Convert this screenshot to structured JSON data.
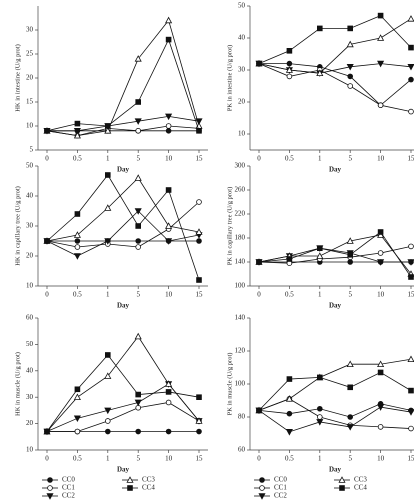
{
  "chart_data": [
    {
      "type": "line",
      "ylabel": "HK in intestine (U/g prot)",
      "xlabel": "Day",
      "categories": [
        "0",
        "0.5",
        "1",
        "5",
        "10",
        "15"
      ],
      "ylim": [
        5,
        35
      ],
      "yticks": [
        5,
        10,
        15,
        20,
        25,
        30
      ],
      "series": [
        {
          "name": "CC0",
          "color": "#111",
          "marker": "circle-filled",
          "values": [
            9,
            9,
            9,
            9,
            9,
            9
          ]
        },
        {
          "name": "CC1",
          "color": "#111",
          "marker": "circle-open",
          "values": [
            9,
            8,
            9.5,
            9,
            10,
            9.5
          ]
        },
        {
          "name": "CC2",
          "color": "#111",
          "marker": "triangle-down-filled",
          "values": [
            9,
            9,
            10,
            11,
            12,
            11
          ]
        },
        {
          "name": "CC3",
          "color": "#111",
          "marker": "triangle-up-open",
          "values": [
            9,
            8,
            9,
            24,
            32,
            10
          ]
        },
        {
          "name": "CC4",
          "color": "#111",
          "marker": "square-filled",
          "values": [
            9,
            10.5,
            10,
            15,
            28,
            9
          ]
        }
      ]
    },
    {
      "type": "line",
      "ylabel": "PK in intestine (U/g prot)",
      "xlabel": "Day",
      "categories": [
        "0",
        "0.5",
        "1",
        "5",
        "10",
        "15"
      ],
      "ylim": [
        5,
        50
      ],
      "yticks": [
        10,
        20,
        30,
        40,
        50
      ],
      "series": [
        {
          "name": "CC0",
          "color": "#111",
          "marker": "circle-filled",
          "values": [
            32,
            32,
            31,
            28,
            19,
            27
          ]
        },
        {
          "name": "CC1",
          "color": "#111",
          "marker": "circle-open",
          "values": [
            32,
            28,
            30,
            25,
            19,
            17
          ]
        },
        {
          "name": "CC2",
          "color": "#111",
          "marker": "triangle-down-filled",
          "values": [
            32,
            30,
            29,
            31,
            32,
            31
          ]
        },
        {
          "name": "CC3",
          "color": "#111",
          "marker": "triangle-up-open",
          "values": [
            32,
            30,
            29,
            38,
            40,
            46
          ]
        },
        {
          "name": "CC4",
          "color": "#111",
          "marker": "square-filled",
          "values": [
            32,
            36,
            43,
            43,
            47,
            37
          ]
        }
      ]
    },
    {
      "type": "line",
      "ylabel": "HK in capillary tree (U/g prot)",
      "xlabel": "Day",
      "categories": [
        "0",
        "0.5",
        "1",
        "5",
        "10",
        "15"
      ],
      "ylim": [
        10,
        50
      ],
      "yticks": [
        10,
        20,
        30,
        40,
        50
      ],
      "series": [
        {
          "name": "CC0",
          "color": "#111",
          "marker": "circle-filled",
          "values": [
            25,
            25,
            25,
            25,
            25,
            25
          ]
        },
        {
          "name": "CC1",
          "color": "#111",
          "marker": "circle-open",
          "values": [
            25,
            23,
            24,
            23,
            29,
            38
          ]
        },
        {
          "name": "CC2",
          "color": "#111",
          "marker": "triangle-down-filled",
          "values": [
            25,
            20,
            25,
            35,
            25,
            27
          ]
        },
        {
          "name": "CC3",
          "color": "#111",
          "marker": "triangle-up-open",
          "values": [
            25,
            27,
            36,
            46,
            30,
            28
          ]
        },
        {
          "name": "CC4",
          "color": "#111",
          "marker": "square-filled",
          "values": [
            25,
            34,
            47,
            30,
            42,
            12
          ]
        }
      ]
    },
    {
      "type": "line",
      "ylabel": "PK in capillary tree (U/g prot)",
      "xlabel": "Day",
      "categories": [
        "0",
        "0.5",
        "1",
        "5",
        "10",
        "15"
      ],
      "ylim": [
        100,
        300
      ],
      "yticks": [
        100,
        140,
        180,
        220,
        260,
        300
      ],
      "series": [
        {
          "name": "CC0",
          "color": "#111",
          "marker": "circle-filled",
          "values": [
            140,
            140,
            140,
            140,
            140,
            140
          ]
        },
        {
          "name": "CC1",
          "color": "#111",
          "marker": "circle-open",
          "values": [
            140,
            138,
            145,
            148,
            155,
            166
          ]
        },
        {
          "name": "CC2",
          "color": "#111",
          "marker": "triangle-down-filled",
          "values": [
            140,
            150,
            163,
            155,
            140,
            140
          ]
        },
        {
          "name": "CC3",
          "color": "#111",
          "marker": "triangle-up-open",
          "values": [
            140,
            150,
            150,
            175,
            185,
            120
          ]
        },
        {
          "name": "CC4",
          "color": "#111",
          "marker": "square-filled",
          "values": [
            140,
            145,
            163,
            152,
            190,
            115
          ]
        }
      ]
    },
    {
      "type": "line",
      "ylabel": "HK in muscle (U/g prot)",
      "xlabel": "Day",
      "categories": [
        "0",
        "0.5",
        "1",
        "5",
        "10",
        "15"
      ],
      "ylim": [
        10,
        60
      ],
      "yticks": [
        10,
        20,
        30,
        40,
        50,
        60
      ],
      "series": [
        {
          "name": "CC0",
          "color": "#111",
          "marker": "circle-filled",
          "values": [
            17,
            17,
            17,
            17,
            17,
            17
          ]
        },
        {
          "name": "CC1",
          "color": "#111",
          "marker": "circle-open",
          "values": [
            17,
            17,
            21,
            26,
            28,
            21
          ]
        },
        {
          "name": "CC2",
          "color": "#111",
          "marker": "triangle-down-filled",
          "values": [
            17,
            22,
            25,
            28,
            35,
            21
          ]
        },
        {
          "name": "CC3",
          "color": "#111",
          "marker": "triangle-up-open",
          "values": [
            17,
            30,
            38,
            53,
            35,
            21
          ]
        },
        {
          "name": "CC4",
          "color": "#111",
          "marker": "square-filled",
          "values": [
            17,
            33,
            46,
            31,
            32,
            30
          ]
        }
      ]
    },
    {
      "type": "line",
      "ylabel": "PK in muscle (U/g prot)",
      "xlabel": "Day",
      "categories": [
        "0",
        "0.5",
        "1",
        "5",
        "10",
        "15"
      ],
      "ylim": [
        60,
        140
      ],
      "yticks": [
        60,
        80,
        100,
        120,
        140
      ],
      "series": [
        {
          "name": "CC0",
          "color": "#111",
          "marker": "circle-filled",
          "values": [
            84,
            82,
            85,
            80,
            88,
            84
          ]
        },
        {
          "name": "CC1",
          "color": "#111",
          "marker": "circle-open",
          "values": [
            84,
            91,
            80,
            75,
            74,
            73
          ]
        },
        {
          "name": "CC2",
          "color": "#111",
          "marker": "triangle-down-filled",
          "values": [
            84,
            71,
            77,
            74,
            86,
            83
          ]
        },
        {
          "name": "CC3",
          "color": "#111",
          "marker": "triangle-up-open",
          "values": [
            84,
            91,
            104,
            112,
            112,
            115
          ]
        },
        {
          "name": "CC4",
          "color": "#111",
          "marker": "square-filled",
          "values": [
            84,
            103,
            104,
            98,
            107,
            96
          ]
        }
      ]
    }
  ]
}
